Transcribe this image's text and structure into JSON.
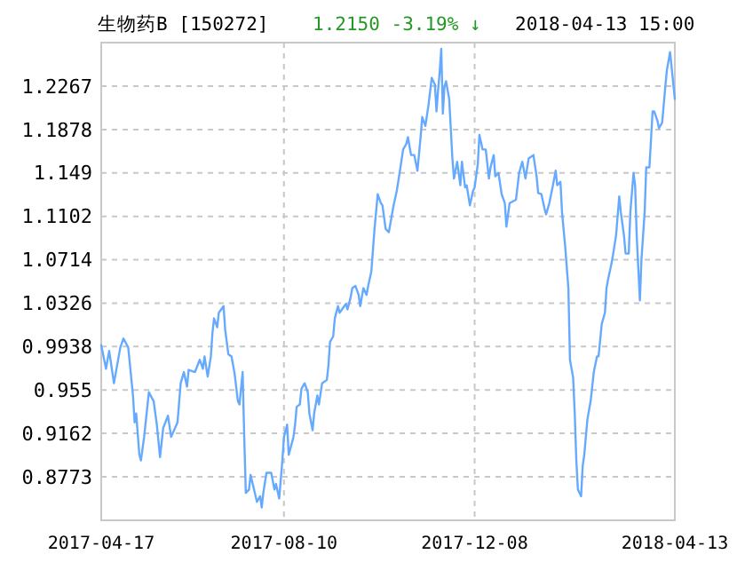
{
  "chart_data": {
    "type": "line",
    "title": "生物药B [150272]",
    "subtitle": "1.2150  -3.19% ↓",
    "annotations": [
      "2018-04-13 15:00"
    ],
    "xlim": [
      "2017-04-17",
      "2018-04-13"
    ],
    "xticks": [
      "2017-04-17",
      "2017-08-10",
      "2017-12-08",
      "2018-04-13"
    ],
    "ylim": [
      0.8385,
      1.2655
    ],
    "yticks": [
      0.8773,
      0.9162,
      0.955,
      0.9938,
      1.0326,
      1.0714,
      1.1102,
      1.149,
      1.1878,
      1.2267
    ],
    "grid": true,
    "marker": "none",
    "line_style": "solid",
    "series": [
      {
        "color": "#66aaff",
        "x": [
          "2017-04-17",
          "2017-04-20",
          "2017-04-22",
          "2017-04-25",
          "2017-04-29",
          "2017-05-01",
          "2017-05-04",
          "2017-05-07",
          "2017-05-08",
          "2017-05-09",
          "2017-05-11",
          "2017-05-12",
          "2017-05-14",
          "2017-05-17",
          "2017-05-20",
          "2017-05-22",
          "2017-05-24",
          "2017-05-26",
          "2017-05-29",
          "2017-05-31",
          "2017-06-04",
          "2017-06-06",
          "2017-06-08",
          "2017-06-10",
          "2017-06-11",
          "2017-06-15",
          "2017-06-18",
          "2017-06-20",
          "2017-06-21",
          "2017-06-23",
          "2017-06-25",
          "2017-06-26",
          "2017-06-27",
          "2017-06-29",
          "2017-06-30",
          "2017-07-03",
          "2017-07-04",
          "2017-07-06",
          "2017-07-08",
          "2017-07-10",
          "2017-07-12",
          "2017-07-13",
          "2017-07-15",
          "2017-07-16",
          "2017-07-17",
          "2017-07-19",
          "2017-07-20",
          "2017-07-24",
          "2017-07-26",
          "2017-07-27",
          "2017-07-28",
          "2017-07-30",
          "2017-08-02",
          "2017-08-04",
          "2017-08-05",
          "2017-08-07",
          "2017-08-09",
          "2017-08-10",
          "2017-08-12",
          "2017-08-13",
          "2017-08-16",
          "2017-08-17",
          "2017-08-18",
          "2017-08-20",
          "2017-08-21",
          "2017-08-23",
          "2017-08-25",
          "2017-08-26",
          "2017-08-28",
          "2017-08-29",
          "2017-08-31",
          "2017-09-01",
          "2017-09-03",
          "2017-09-06",
          "2017-09-07",
          "2017-09-08",
          "2017-09-10",
          "2017-09-11",
          "2017-09-13",
          "2017-09-14",
          "2017-09-18",
          "2017-09-19",
          "2017-09-21",
          "2017-09-22",
          "2017-09-24",
          "2017-09-26",
          "2017-09-27",
          "2017-09-29",
          "2017-10-01",
          "2017-10-02",
          "2017-10-04",
          "2017-10-06",
          "2017-10-08",
          "2017-10-10",
          "2017-10-11",
          "2017-10-13",
          "2017-10-15",
          "2017-10-17",
          "2017-10-18",
          "2017-10-20",
          "2017-10-22",
          "2017-10-24",
          "2017-10-26",
          "2017-10-27",
          "2017-10-29",
          "2017-10-31",
          "2017-11-02",
          "2017-11-04",
          "2017-11-05",
          "2017-11-07",
          "2017-11-09",
          "2017-11-11",
          "2017-11-13",
          "2017-11-14",
          "2017-11-15",
          "2017-11-16",
          "2017-11-17",
          "2017-11-18",
          "2017-11-19",
          "2017-11-20",
          "2017-11-22",
          "2017-11-24",
          "2017-11-25",
          "2017-11-27",
          "2017-11-29",
          "2017-11-30",
          "2017-12-02",
          "2017-12-03",
          "2017-12-05",
          "2017-12-07",
          "2017-12-08",
          "2017-12-10",
          "2017-12-11",
          "2017-12-13",
          "2017-12-15",
          "2017-12-17",
          "2017-12-18",
          "2017-12-20",
          "2017-12-21",
          "2017-12-23",
          "2017-12-25",
          "2017-12-27",
          "2017-12-28",
          "2017-12-30",
          "2018-01-03",
          "2018-01-05",
          "2018-01-07",
          "2018-01-09",
          "2018-01-11",
          "2018-01-14",
          "2018-01-16",
          "2018-01-17",
          "2018-01-19",
          "2018-01-21",
          "2018-01-22",
          "2018-01-24",
          "2018-01-26",
          "2018-01-28",
          "2018-01-29",
          "2018-01-31",
          "2018-02-01",
          "2018-02-03",
          "2018-02-05",
          "2018-02-06",
          "2018-02-08",
          "2018-02-09",
          "2018-02-10",
          "2018-02-11",
          "2018-02-13",
          "2018-02-14",
          "2018-02-15",
          "2018-02-17",
          "2018-02-19",
          "2018-02-21",
          "2018-02-23",
          "2018-02-24",
          "2018-02-26",
          "2018-02-28",
          "2018-03-01",
          "2018-03-02",
          "2018-03-04",
          "2018-03-05",
          "2018-03-07",
          "2018-03-09",
          "2018-03-10",
          "2018-03-12",
          "2018-03-13",
          "2018-03-15",
          "2018-03-16",
          "2018-03-18",
          "2018-03-19",
          "2018-03-20",
          "2018-03-22",
          "2018-03-23",
          "2018-03-25",
          "2018-03-26",
          "2018-03-28",
          "2018-03-30",
          "2018-03-31",
          "2018-04-02",
          "2018-04-03",
          "2018-04-05",
          "2018-04-07",
          "2018-04-08",
          "2018-04-10",
          "2018-04-13"
        ],
        "values": [
          0.995,
          0.974,
          0.99,
          0.961,
          0.993,
          1.001,
          0.993,
          0.95,
          0.926,
          0.934,
          0.897,
          0.892,
          0.913,
          0.953,
          0.945,
          0.924,
          0.895,
          0.921,
          0.932,
          0.913,
          0.926,
          0.961,
          0.971,
          0.958,
          0.973,
          0.971,
          0.982,
          0.974,
          0.985,
          0.967,
          0.985,
          1.006,
          1.019,
          1.011,
          1.024,
          1.03,
          1.009,
          0.987,
          0.985,
          0.969,
          0.945,
          0.942,
          0.971,
          0.913,
          0.863,
          0.866,
          0.879,
          0.855,
          0.86,
          0.85,
          0.863,
          0.881,
          0.881,
          0.866,
          0.871,
          0.858,
          0.892,
          0.913,
          0.924,
          0.897,
          0.913,
          0.924,
          0.94,
          0.942,
          0.956,
          0.961,
          0.953,
          0.934,
          0.919,
          0.934,
          0.95,
          0.942,
          0.961,
          0.964,
          0.977,
          0.998,
          1.003,
          1.019,
          1.03,
          1.024,
          1.032,
          1.027,
          1.038,
          1.046,
          1.048,
          1.04,
          1.03,
          1.046,
          1.04,
          1.048,
          1.061,
          1.099,
          1.13,
          1.122,
          1.12,
          1.099,
          1.096,
          1.112,
          1.12,
          1.133,
          1.151,
          1.17,
          1.175,
          1.181,
          1.165,
          1.165,
          1.151,
          1.181,
          1.199,
          1.191,
          1.21,
          1.234,
          1.228,
          1.204,
          1.223,
          1.239,
          1.26,
          1.202,
          1.226,
          1.231,
          1.215,
          1.162,
          1.144,
          1.159,
          1.138,
          1.159,
          1.136,
          1.138,
          1.12,
          1.133,
          1.136,
          1.157,
          1.183,
          1.17,
          1.17,
          1.144,
          1.154,
          1.165,
          1.146,
          1.149,
          1.13,
          1.122,
          1.101,
          1.122,
          1.125,
          1.149,
          1.159,
          1.144,
          1.162,
          1.165,
          1.146,
          1.131,
          1.13,
          1.117,
          1.112,
          1.122,
          1.136,
          1.151,
          1.138,
          1.141,
          1.114,
          1.083,
          1.046,
          0.982,
          0.966,
          0.934,
          0.892,
          0.866,
          0.86,
          0.887,
          0.897,
          0.929,
          0.945,
          0.971,
          0.985,
          0.985,
          1.014,
          1.024,
          1.046,
          1.054,
          1.067,
          1.075,
          1.093,
          1.128,
          1.114,
          1.093,
          1.077,
          1.077,
          1.114,
          1.149,
          1.138,
          1.093,
          1.035,
          1.072,
          1.114,
          1.154,
          1.154,
          1.204,
          1.204,
          1.196,
          1.189,
          1.194,
          1.226,
          1.241,
          1.257,
          1.215
        ]
      }
    ]
  }
}
